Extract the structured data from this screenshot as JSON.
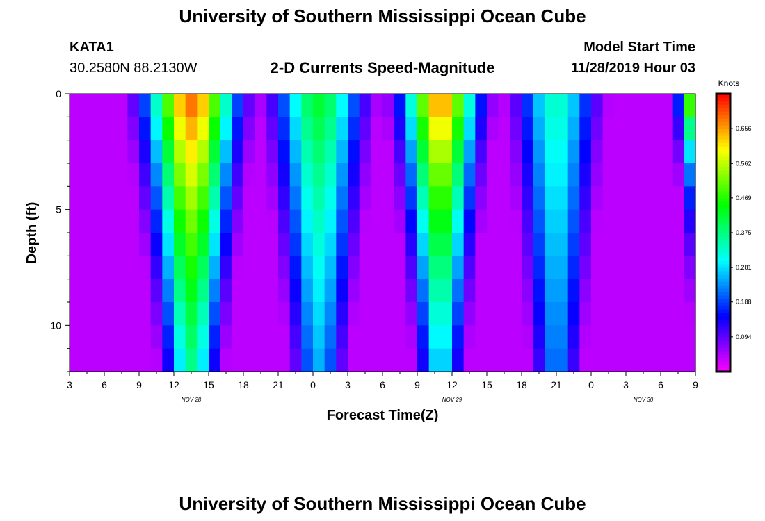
{
  "page": {
    "title_top": "University of Southern Mississippi Ocean Cube",
    "title_bottom": "University of Southern Mississippi Ocean Cube",
    "station_id": "KATA1",
    "station_coords": "30.2580N 88.2130W",
    "product_title": "2-D Currents Speed-Magnitude",
    "model_start_label": "Model Start Time",
    "model_start_value": "11/28/2019 Hour 03"
  },
  "chart_data": {
    "type": "heatmap",
    "title": "2-D Currents Speed-Magnitude",
    "xlabel": "Forecast Time(Z)",
    "ylabel": "Depth (ft)",
    "x_range_hours": [
      0,
      54
    ],
    "y_range_ft": [
      0,
      12
    ],
    "x_tick_labels": [
      "3",
      "6",
      "9",
      "12",
      "15",
      "18",
      "21",
      "0",
      "3",
      "6",
      "9",
      "12",
      "15",
      "18",
      "21",
      "0",
      "3",
      "6",
      "9"
    ],
    "y_tick_labels": [
      "0",
      "5",
      "10"
    ],
    "y_tick_values": [
      0,
      5,
      10
    ],
    "date_labels": [
      {
        "text": "NOV 28",
        "hour": 10.5
      },
      {
        "text": "NOV 29",
        "hour": 33
      },
      {
        "text": "NOV 30",
        "hour": 49.5
      }
    ],
    "colorbar": {
      "unit": "Knots",
      "min": 0.0,
      "max": 0.75,
      "tick_labels": [
        "0.094",
        "0.188",
        "0.281",
        "0.375",
        "0.469",
        "0.562",
        "0.656"
      ],
      "tick_values": [
        0.094,
        0.188,
        0.281,
        0.375,
        0.469,
        0.562,
        0.656
      ],
      "colors": [
        "#ff00ff",
        "#8000ff",
        "#0000ff",
        "#0080ff",
        "#00ffff",
        "#00ff80",
        "#00ff00",
        "#80ff00",
        "#ffff00",
        "#ff8000",
        "#ff0000"
      ]
    },
    "grid": {
      "columns_per_hour": 1,
      "depth_levels": 12,
      "surface_peaks": [
        {
          "center_hour": 10.5,
          "speed_knots": 0.7,
          "width_hours": 3.6,
          "decay_ft": 18
        },
        {
          "center_hour": 32.0,
          "speed_knots": 0.68,
          "width_hours": 3.0,
          "decay_ft": 14
        },
        {
          "center_hour": 21.5,
          "speed_knots": 0.43,
          "width_hours": 3.5,
          "decay_ft": 22
        },
        {
          "center_hour": 42.0,
          "speed_knots": 0.34,
          "width_hours": 3.2,
          "decay_ft": 30
        },
        {
          "center_hour": 54.0,
          "speed_knots": 0.62,
          "width_hours": 1.4,
          "decay_ft": 4
        }
      ],
      "minimum_speed_knots": 0.04
    }
  }
}
